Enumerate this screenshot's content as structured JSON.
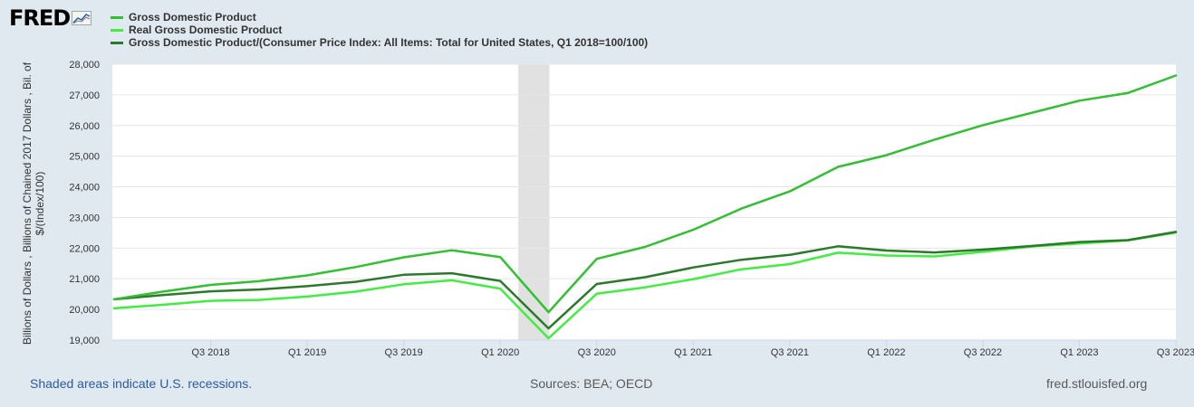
{
  "header": {
    "logo_text": "FRED",
    "logo_icon": "line-chart-icon"
  },
  "legend": {
    "items": [
      {
        "label": "Gross Domestic Product",
        "color": "#30c030"
      },
      {
        "label": "Real Gross Domestic Product",
        "color": "#40ee40"
      },
      {
        "label": "Gross Domestic Product/(Consumer Price Index: All Items: Total for United States, Q1 2018=100/100)",
        "color": "#2a7a2a"
      }
    ]
  },
  "y_axis_title_lines": [
    "Billions of Dollars , Billions of Chained 2017 Dollars , Bil. of",
    "$/(Index/100)"
  ],
  "footer": {
    "recession_note": "Shaded areas indicate U.S. recessions.",
    "sources": "Sources: BEA; OECD",
    "site": "fred.stlouisfed.org"
  },
  "chart_data": {
    "type": "line",
    "title": "",
    "xlabel": "",
    "ylabel": "Billions of Dollars , Billions of Chained 2017 Dollars , Bil. of $/(Index/100)",
    "x": [
      "Q1 2018",
      "Q2 2018",
      "Q3 2018",
      "Q4 2018",
      "Q1 2019",
      "Q2 2019",
      "Q3 2019",
      "Q4 2019",
      "Q1 2020",
      "Q2 2020",
      "Q3 2020",
      "Q4 2020",
      "Q1 2021",
      "Q2 2021",
      "Q3 2021",
      "Q4 2021",
      "Q1 2022",
      "Q2 2022",
      "Q3 2022",
      "Q4 2022",
      "Q1 2023",
      "Q2 2023",
      "Q3 2023"
    ],
    "xticks": [
      "Q3 2018",
      "Q1 2019",
      "Q3 2019",
      "Q1 2020",
      "Q3 2020",
      "Q1 2021",
      "Q3 2021",
      "Q1 2022",
      "Q3 2022",
      "Q1 2023",
      "Q3 2023"
    ],
    "yticks": [
      19000,
      20000,
      21000,
      22000,
      23000,
      24000,
      25000,
      26000,
      27000,
      28000
    ],
    "ylim": [
      19000,
      28000
    ],
    "grid": true,
    "recessions": [
      {
        "start": "Q1 2020",
        "end": "Q2 2020"
      }
    ],
    "series": [
      {
        "name": "Gross Domestic Product",
        "color": "#30c030",
        "values": [
          20330,
          20580,
          20800,
          20920,
          21110,
          21380,
          21700,
          21930,
          21710,
          19910,
          21650,
          22040,
          22600,
          23290,
          23850,
          24650,
          25030,
          25540,
          26010,
          26410,
          26810,
          27060,
          27630
        ]
      },
      {
        "name": "Real Gross Domestic Product",
        "color": "#40ee40",
        "values": [
          20040,
          20150,
          20280,
          20310,
          20420,
          20580,
          20820,
          20950,
          20680,
          19060,
          20510,
          20720,
          20990,
          21310,
          21480,
          21850,
          21760,
          21730,
          21880,
          22050,
          22150,
          22250,
          22510
        ]
      },
      {
        "name": "Gross Domestic Product/(Consumer Price Index: All Items: Total for United States, Q1 2018=100/100)",
        "color": "#2a7a2a",
        "values": [
          20330,
          20470,
          20590,
          20650,
          20760,
          20900,
          21130,
          21180,
          20930,
          19380,
          20830,
          21050,
          21370,
          21620,
          21780,
          22060,
          21920,
          21860,
          21950,
          22070,
          22200,
          22260,
          22530
        ]
      }
    ]
  }
}
